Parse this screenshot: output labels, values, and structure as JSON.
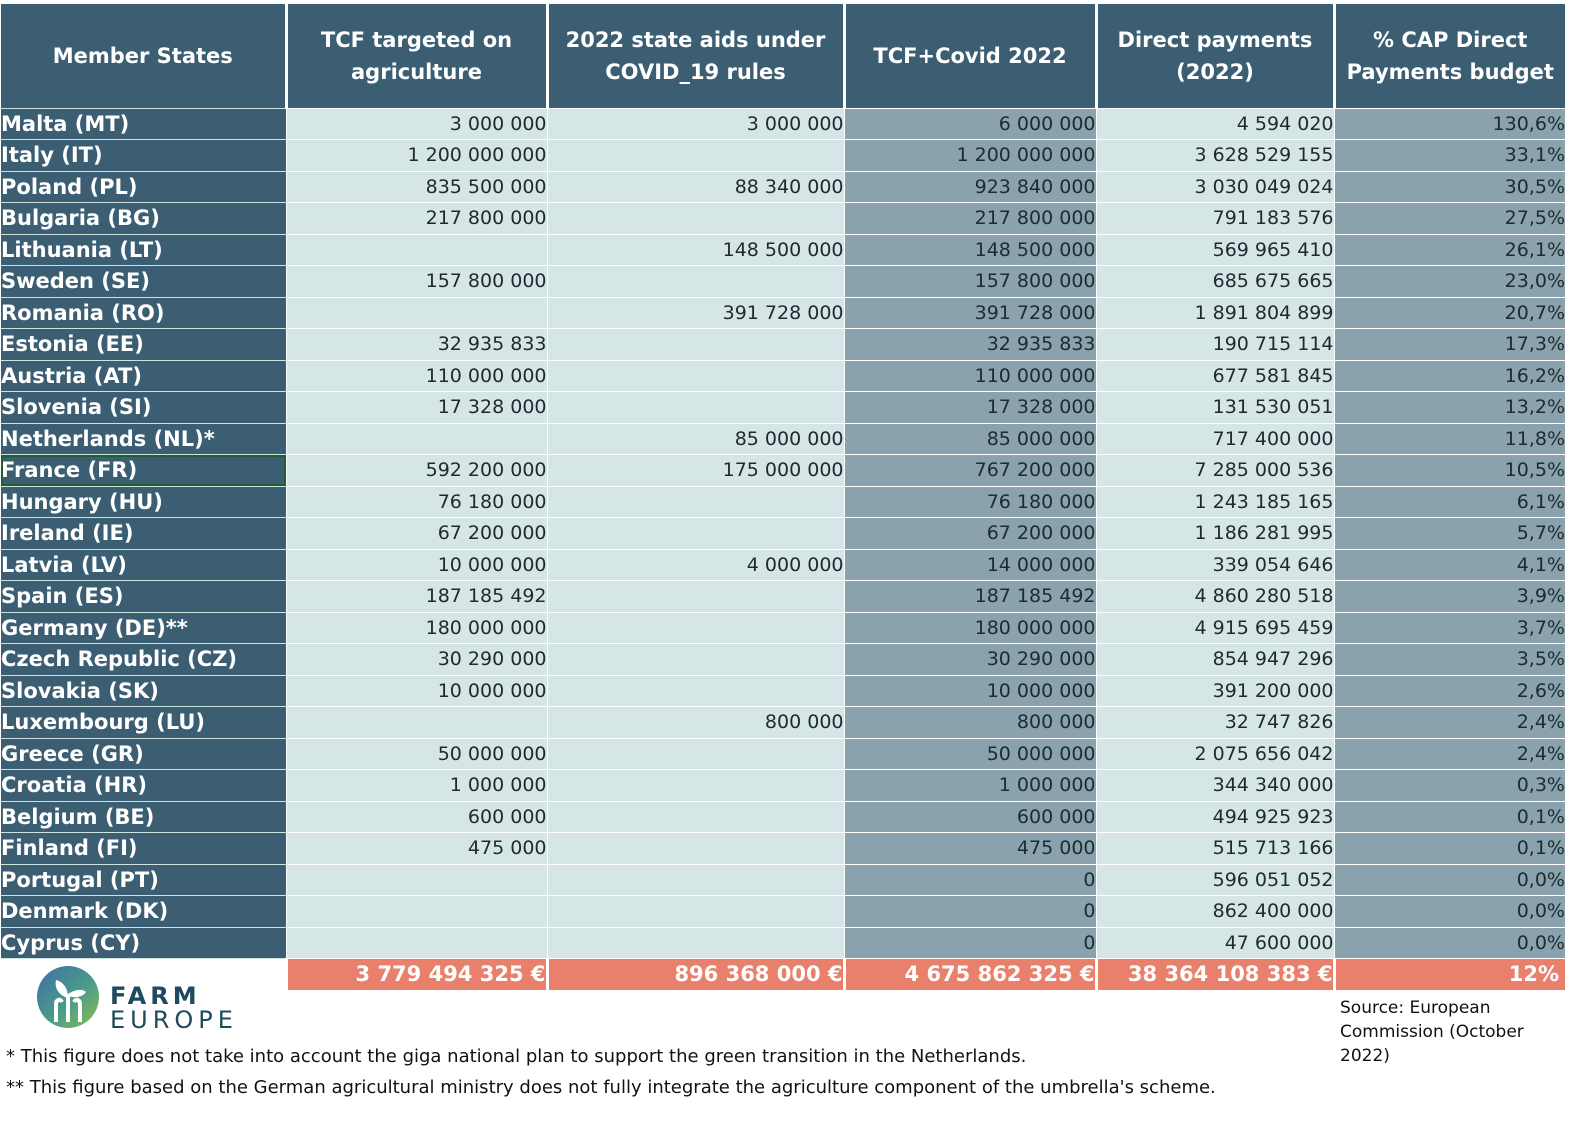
{
  "headers": [
    "Member States",
    "TCF targeted on agriculture",
    "2022 state aids under COVID_19 rules",
    "TCF+Covid 2022",
    "Direct payments (2022)",
    "% CAP Direct Payments budget"
  ],
  "rows": [
    {
      "state": "Malta (MT)",
      "tcf": "3 000 000",
      "covid": "3 000 000",
      "total": "6 000 000",
      "dp": "4 594 020",
      "pct": "130,6%"
    },
    {
      "state": "Italy (IT)",
      "tcf": "1 200 000 000",
      "covid": "",
      "total": "1 200 000 000",
      "dp": "3 628 529 155",
      "pct": "33,1%"
    },
    {
      "state": "Poland (PL)",
      "tcf": "835 500 000",
      "covid": "88 340 000",
      "total": "923 840 000",
      "dp": "3 030 049 024",
      "pct": "30,5%"
    },
    {
      "state": "Bulgaria (BG)",
      "tcf": "217 800 000",
      "covid": "",
      "total": "217 800 000",
      "dp": "791 183 576",
      "pct": "27,5%"
    },
    {
      "state": "Lithuania (LT)",
      "tcf": "",
      "covid": "148 500 000",
      "total": "148 500 000",
      "dp": "569 965 410",
      "pct": "26,1%"
    },
    {
      "state": "Sweden (SE)",
      "tcf": "157 800 000",
      "covid": "",
      "total": "157 800 000",
      "dp": "685 675 665",
      "pct": "23,0%"
    },
    {
      "state": "Romania (RO)",
      "tcf": "",
      "covid": "391 728 000",
      "total": "391 728 000",
      "dp": "1 891 804 899",
      "pct": "20,7%"
    },
    {
      "state": "Estonia (EE)",
      "tcf": "32 935 833",
      "covid": "",
      "total": "32 935 833",
      "dp": "190 715 114",
      "pct": "17,3%"
    },
    {
      "state": "Austria (AT)",
      "tcf": "110 000 000",
      "covid": "",
      "total": "110 000 000",
      "dp": "677 581 845",
      "pct": "16,2%"
    },
    {
      "state": "Slovenia (SI)",
      "tcf": "17 328 000",
      "covid": "",
      "total": "17 328 000",
      "dp": "131 530 051",
      "pct": "13,2%"
    },
    {
      "state": "Netherlands (NL)*",
      "tcf": "",
      "covid": "85 000 000",
      "total": "85 000 000",
      "dp": "717 400 000",
      "pct": "11,8%"
    },
    {
      "state": "France (FR)",
      "tcf": "592 200 000",
      "covid": "175 000 000",
      "total": "767 200 000",
      "dp": "7 285 000 536",
      "pct": "10,5%"
    },
    {
      "state": "Hungary  (HU)",
      "tcf": "76 180 000",
      "covid": "",
      "total": "76 180 000",
      "dp": "1 243 185 165",
      "pct": "6,1%"
    },
    {
      "state": "Ireland (IE)",
      "tcf": "67 200 000",
      "covid": "",
      "total": "67 200 000",
      "dp": "1 186 281 995",
      "pct": "5,7%"
    },
    {
      "state": "Latvia (LV)",
      "tcf": "10 000 000",
      "covid": "4 000 000",
      "total": "14 000 000",
      "dp": "339 054 646",
      "pct": "4,1%"
    },
    {
      "state": "Spain (ES)",
      "tcf": "187 185 492",
      "covid": "",
      "total": "187 185 492",
      "dp": "4 860 280 518",
      "pct": "3,9%"
    },
    {
      "state": "Germany (DE)**",
      "tcf": "180 000 000",
      "covid": "",
      "total": "180 000 000",
      "dp": "4 915 695 459",
      "pct": "3,7%"
    },
    {
      "state": "Czech Republic (CZ)",
      "tcf": "30 290 000",
      "covid": "",
      "total": "30 290 000",
      "dp": "854 947 296",
      "pct": "3,5%"
    },
    {
      "state": "Slovakia (SK)",
      "tcf": "10 000 000",
      "covid": "",
      "total": "10 000 000",
      "dp": "391 200 000",
      "pct": "2,6%"
    },
    {
      "state": "Luxembourg (LU)",
      "tcf": "",
      "covid": "800 000",
      "total": "800 000",
      "dp": "32 747 826",
      "pct": "2,4%"
    },
    {
      "state": "Greece (GR)",
      "tcf": "50 000 000",
      "covid": "",
      "total": "50 000 000",
      "dp": "2 075 656 042",
      "pct": "2,4%"
    },
    {
      "state": "Croatia (HR)",
      "tcf": "1 000 000",
      "covid": "",
      "total": "1 000 000",
      "dp": "344 340 000",
      "pct": "0,3%"
    },
    {
      "state": "Belgium (BE)",
      "tcf": "600 000",
      "covid": "",
      "total": "600 000",
      "dp": "494 925 923",
      "pct": "0,1%"
    },
    {
      "state": "Finland (FI)",
      "tcf": "475 000",
      "covid": "",
      "total": "475 000",
      "dp": "515 713 166",
      "pct": "0,1%"
    },
    {
      "state": "Portugal (PT)",
      "tcf": "",
      "covid": "",
      "total": "0",
      "dp": "596 051 052",
      "pct": "0,0%"
    },
    {
      "state": "Denmark (DK)",
      "tcf": "",
      "covid": "",
      "total": "0",
      "dp": "862 400 000",
      "pct": "0,0%"
    },
    {
      "state": "Cyprus (CY)",
      "tcf": "",
      "covid": "",
      "total": "0",
      "dp": "47 600 000",
      "pct": "0,0%"
    }
  ],
  "totals": {
    "tcf": "3 779 494 325 €",
    "covid": "896 368 000 €",
    "total": "4 675 862 325 €",
    "dp": "38 364 108 383 €",
    "pct": "12%"
  },
  "logo": {
    "line1": "FARM",
    "line2": "EUROPE"
  },
  "source": "Source: European Commission (October 2022)",
  "notes": [
    "* This figure does not take into account the giga national plan to support the green transition in the Netherlands.",
    "** This figure based on the German agricultural ministry does not fully integrate the agriculture component of the umbrella's scheme."
  ],
  "selected_row": "France (FR)",
  "colors": {
    "header": "#3b5e73",
    "light_cell": "#d6e6e6",
    "dark_cell": "#89a2ad",
    "total_row": "#e9806c"
  }
}
